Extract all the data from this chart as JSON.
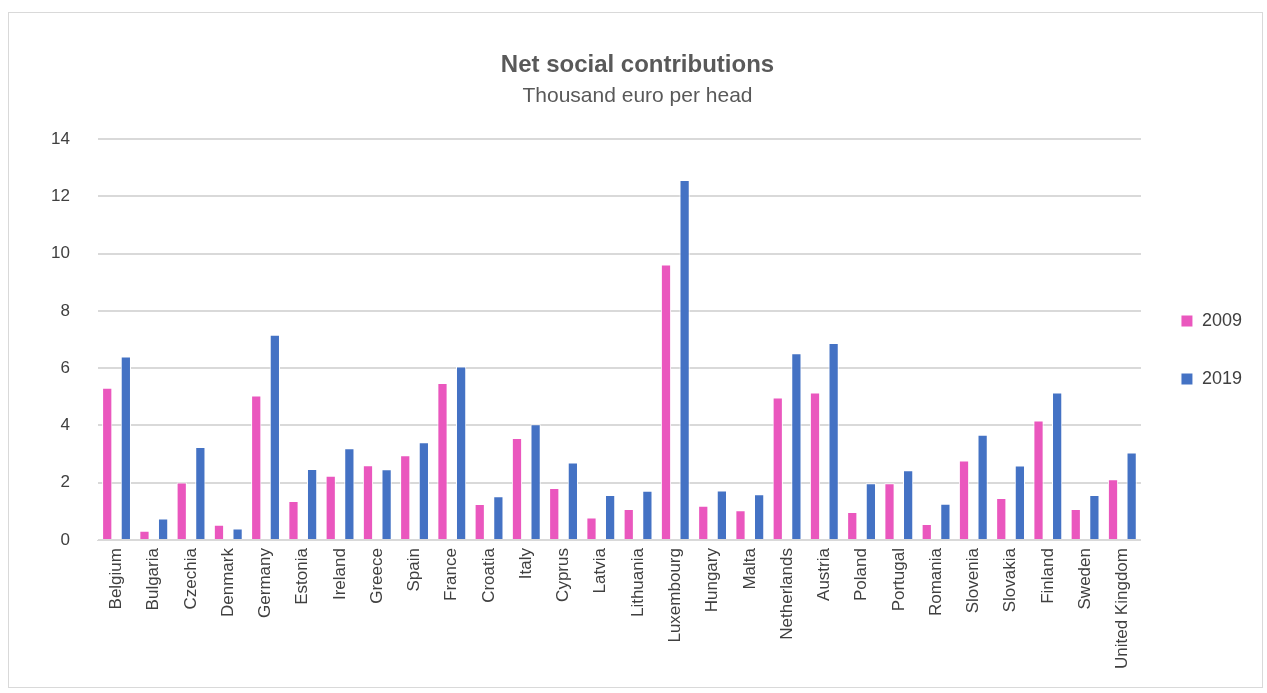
{
  "chart_data": {
    "type": "bar",
    "title": "Net social contributions",
    "subtitle": "Thousand euro per head",
    "categories": [
      "Belgium",
      "Bulgaria",
      "Czechia",
      "Denmark",
      "Germany",
      "Estonia",
      "Ireland",
      "Greece",
      "Spain",
      "France",
      "Croatia",
      "Italy",
      "Cyprus",
      "Latvia",
      "Lithuania",
      "Luxembourg",
      "Hungary",
      "Malta",
      "Netherlands",
      "Austria",
      "Poland",
      "Portugal",
      "Romania",
      "Slovenia",
      "Slovakia",
      "Finland",
      "Sweden",
      "United Kingdom"
    ],
    "series": [
      {
        "name": "2009",
        "color": "#ea57be",
        "values": [
          5.32,
          0.32,
          2.01,
          0.53,
          5.05,
          1.36,
          2.24,
          2.61,
          2.96,
          5.48,
          1.26,
          3.56,
          1.82,
          0.79,
          1.08,
          9.62,
          1.2,
          1.04,
          4.98,
          5.15,
          0.98,
          1.98,
          0.56,
          2.78,
          1.47,
          4.17,
          1.08,
          2.12
        ]
      },
      {
        "name": "2019",
        "color": "#4472c4",
        "values": [
          6.41,
          0.75,
          3.25,
          0.4,
          7.17,
          2.48,
          3.2,
          2.47,
          3.41,
          6.06,
          1.53,
          4.04,
          2.71,
          1.57,
          1.72,
          12.57,
          1.73,
          1.6,
          6.52,
          6.88,
          1.98,
          2.44,
          1.27,
          3.68,
          2.6,
          5.15,
          1.57,
          3.06
        ]
      }
    ],
    "ylim": [
      0,
      14
    ],
    "yticks": [
      0,
      2,
      4,
      6,
      8,
      10,
      12,
      14
    ],
    "grid": "y",
    "legend": "right"
  }
}
